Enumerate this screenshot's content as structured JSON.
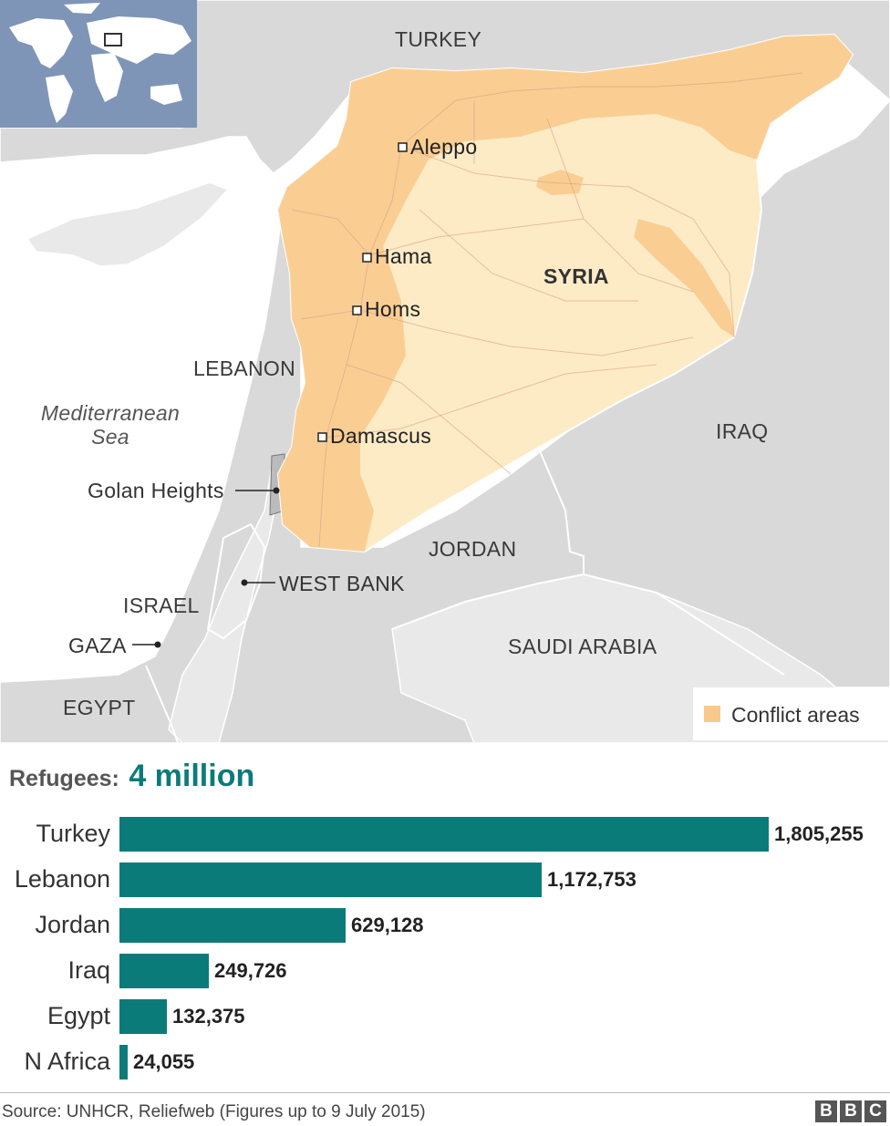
{
  "map": {
    "countries": {
      "turkey": "TURKEY",
      "syria": "SYRIA",
      "lebanon": "LEBANON",
      "iraq": "IRAQ",
      "jordan": "JORDAN",
      "israel": "ISRAEL",
      "saudi_arabia": "SAUDI ARABIA",
      "egypt": "EGYPT"
    },
    "sea_line1": "Mediterranean",
    "sea_line2": "Sea",
    "cities": {
      "aleppo": "Aleppo",
      "hama": "Hama",
      "homs": "Homs",
      "damascus": "Damascus"
    },
    "callouts": {
      "golan": "Golan Heights",
      "west_bank": "WEST BANK",
      "gaza": "GAZA"
    },
    "legend": {
      "label": "Conflict areas"
    },
    "colors": {
      "sea": "#ffffff",
      "land": "#d9d9d9",
      "land_light": "#e9e9e9",
      "syria_fill": "#fdebc6",
      "conflict": "#f9c98a",
      "road": "#d6a08a",
      "globe_ocean": "#7e95b7",
      "globe_land": "#ffffff"
    }
  },
  "headline": {
    "label": "Refugees:",
    "value": "4 million",
    "value_color": "#0b7b7a"
  },
  "chart_data": {
    "type": "bar",
    "orientation": "horizontal",
    "categories": [
      "Turkey",
      "Lebanon",
      "Jordan",
      "Iraq",
      "Egypt",
      "N Africa"
    ],
    "values": [
      1805255,
      1172753,
      629128,
      249726,
      132375,
      24055
    ],
    "value_labels": [
      "1,805,255",
      "1,172,753",
      "629,128",
      "249,726",
      "132,375",
      "24,055"
    ],
    "bar_color": "#0b7b7a"
  },
  "footer": {
    "source": "Source: UNHCR, Reliefweb (Figures up to 9 July 2015)",
    "logo": [
      "B",
      "B",
      "C"
    ]
  }
}
